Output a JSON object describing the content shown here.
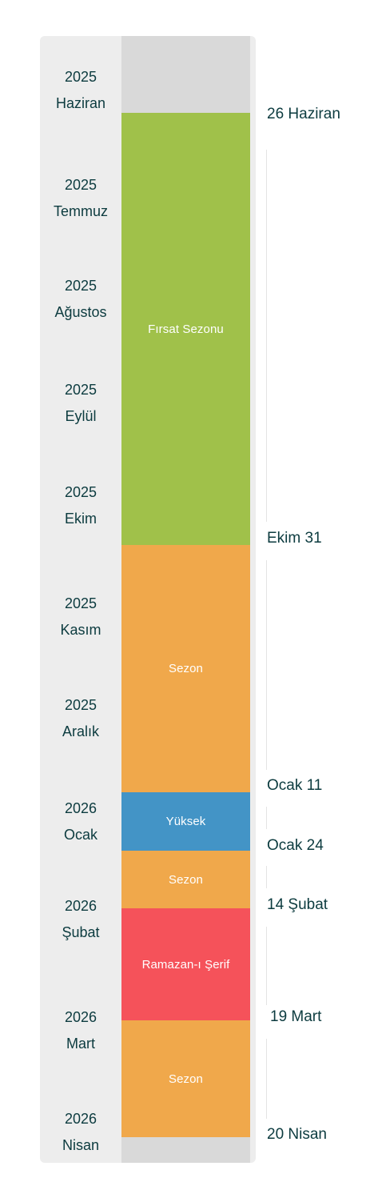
{
  "months": [
    {
      "year": "2025",
      "name": "Haziran"
    },
    {
      "year": "2025",
      "name": "Temmuz"
    },
    {
      "year": "2025",
      "name": "Ağustos"
    },
    {
      "year": "2025",
      "name": "Eylül"
    },
    {
      "year": "2025",
      "name": "Ekim"
    },
    {
      "year": "2025",
      "name": "Kasım"
    },
    {
      "year": "2025",
      "name": "Aralık"
    },
    {
      "year": "2026",
      "name": "Ocak"
    },
    {
      "year": "2026",
      "name": "Şubat"
    },
    {
      "year": "2026",
      "name": "Mart"
    },
    {
      "year": "2026",
      "name": "Nisan"
    }
  ],
  "segments": [
    {
      "label": "Fırsat Sezonu",
      "color": "#a0c14a"
    },
    {
      "label": "Sezon",
      "color": "#f0a84b"
    },
    {
      "label": "Yüksek",
      "color": "#4394c6"
    },
    {
      "label": "Sezon",
      "color": "#f0a84b"
    },
    {
      "label": "Ramazan-ı Şerif",
      "color": "#f5525a"
    },
    {
      "label": "Sezon",
      "color": "#f0a84b"
    }
  ],
  "dates": [
    "26 Haziran",
    "Ekim 31",
    "Ocak 11",
    "Ocak 24",
    "14 Şubat",
    "19 Mart",
    "20 Nisan"
  ],
  "colors": {
    "text": "#0c3b3f",
    "panel": "#ededed",
    "strip": "#d9d9d9"
  }
}
